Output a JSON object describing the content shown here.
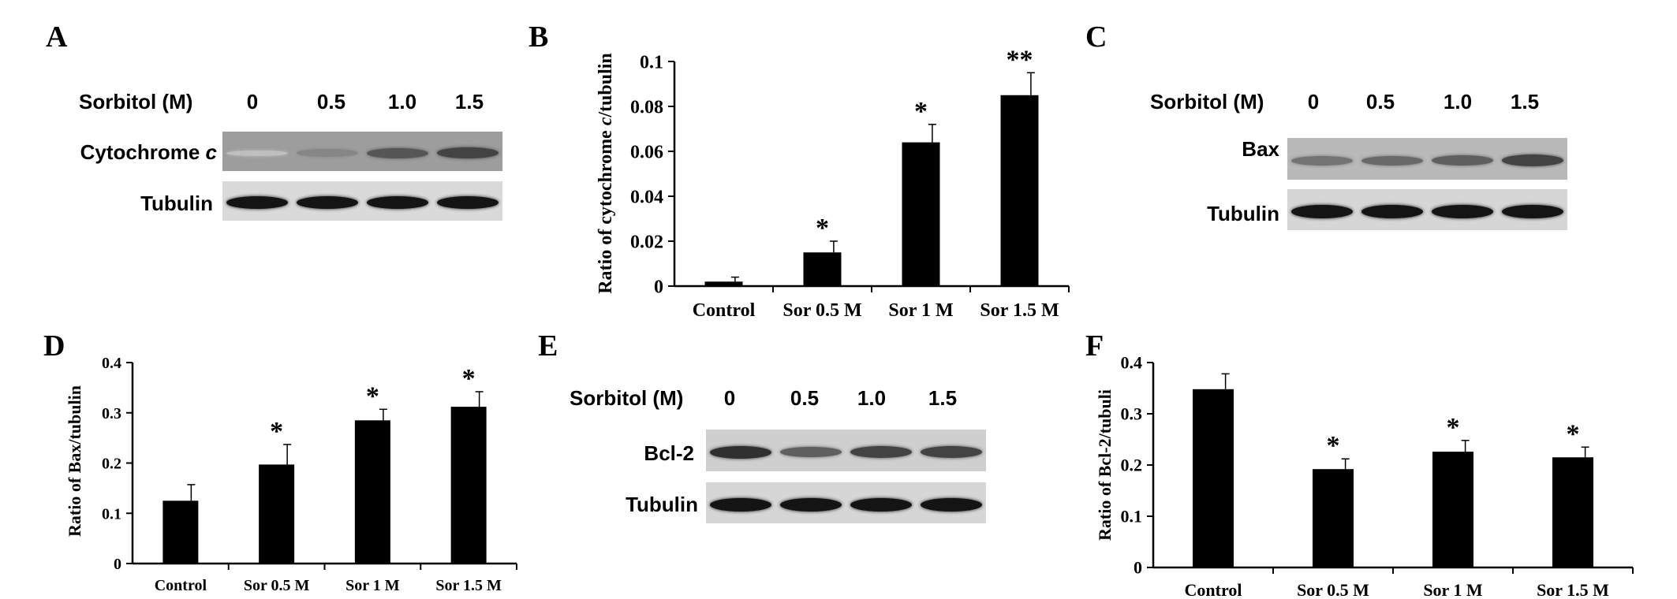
{
  "panels": {
    "A": {
      "letter": "A",
      "header": "Sorbitol (M)",
      "lanes": [
        "0",
        "0.5",
        "1.0",
        "1.5"
      ],
      "rows": [
        {
          "label": "Cytochrome ",
          "label_italic": "c",
          "band_intensity": [
            0.05,
            0.35,
            0.6,
            0.7
          ],
          "bg": "#9d9d9d"
        },
        {
          "label": "Tubulin",
          "band_intensity": [
            0.95,
            0.95,
            0.95,
            0.95
          ],
          "bg": "#dadada"
        }
      ]
    },
    "B": {
      "letter": "B",
      "chart_data": {
        "type": "bar",
        "categories": [
          "Control",
          "Sor 0.5 M",
          "Sor 1 M",
          "Sor 1.5 M"
        ],
        "values": [
          0.002,
          0.015,
          0.064,
          0.085
        ],
        "errors": [
          0.002,
          0.005,
          0.008,
          0.01
        ],
        "significance": [
          "",
          "*",
          "*",
          "**"
        ],
        "ylabel_prefix": "Ratio of cytochrome ",
        "ylabel_italic": "c",
        "ylabel_suffix": "/tubulin",
        "ylim": [
          0,
          0.1
        ],
        "yticks": [
          0,
          0.02,
          0.04,
          0.06,
          0.08,
          0.1
        ],
        "ytick_labels": [
          "0",
          "0.02",
          "0.04",
          "0.06",
          "0.08",
          "0.1"
        ]
      }
    },
    "C": {
      "letter": "C",
      "header": "Sorbitol (M)",
      "lanes": [
        "0",
        "0.5",
        "1.0",
        "1.5"
      ],
      "rows": [
        {
          "label": "Bax",
          "band_intensity": [
            0.45,
            0.5,
            0.55,
            0.7
          ],
          "bg": "#b9b9b9"
        },
        {
          "label": "Tubulin",
          "band_intensity": [
            0.95,
            0.95,
            0.95,
            0.95
          ],
          "bg": "#d6d6d6"
        }
      ]
    },
    "D": {
      "letter": "D",
      "chart_data": {
        "type": "bar",
        "categories": [
          "Control",
          "Sor 0.5 M",
          "Sor 1 M",
          "Sor 1.5 M"
        ],
        "values": [
          0.125,
          0.197,
          0.285,
          0.312
        ],
        "errors": [
          0.032,
          0.04,
          0.022,
          0.03
        ],
        "significance": [
          "",
          "*",
          "*",
          "*"
        ],
        "ylabel": "Ratio of Bax/tubulin",
        "ylim": [
          0,
          0.4
        ],
        "yticks": [
          0,
          0.1,
          0.2,
          0.3,
          0.4
        ],
        "ytick_labels": [
          "0",
          "0.1",
          "0.2",
          "0.3",
          "0.4"
        ]
      }
    },
    "E": {
      "letter": "E",
      "header": "Sorbitol (M)",
      "lanes": [
        "0",
        "0.5",
        "1.0",
        "1.5"
      ],
      "rows": [
        {
          "label": "Bcl-2",
          "band_intensity": [
            0.8,
            0.55,
            0.7,
            0.7
          ],
          "bg": "#cfcfcf"
        },
        {
          "label": "Tubulin",
          "band_intensity": [
            0.95,
            0.95,
            0.95,
            0.95
          ],
          "bg": "#d6d6d6"
        }
      ]
    },
    "F": {
      "letter": "F",
      "chart_data": {
        "type": "bar",
        "categories": [
          "Control",
          "Sor  0.5 M",
          "Sor 1 M",
          "Sor 1.5 M"
        ],
        "values": [
          0.348,
          0.192,
          0.226,
          0.215
        ],
        "errors": [
          0.03,
          0.02,
          0.022,
          0.02
        ],
        "significance": [
          "",
          "*",
          "*",
          "*"
        ],
        "ylabel": "Ratio of Bcl-2/tubuli",
        "ylim": [
          0,
          0.4
        ],
        "yticks": [
          0,
          0.1,
          0.2,
          0.3,
          0.4
        ],
        "ytick_labels": [
          "0",
          "0.1",
          "0.2",
          "0.3",
          "0.4"
        ]
      }
    }
  }
}
